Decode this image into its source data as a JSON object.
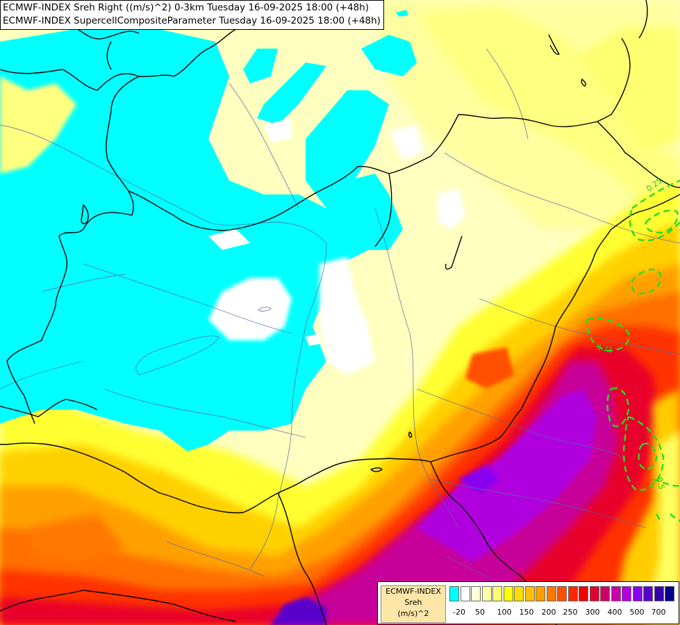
{
  "header": {
    "line1": "ECMWF-INDEX Sreh Right ((m/s)^2) 0-3km Tuesday 16-09-2025 18:00 (+48h)",
    "line2": "ECMWF-INDEX SupercellCompositeParameter Tuesday 16-09-2025 18:00 (+48h)"
  },
  "legend": {
    "model": "ECMWF-INDEX",
    "parameter": "Sreh",
    "unit": "(m/s)^2",
    "colors": [
      "#00ffff",
      "#ffffff",
      "#ffffd8",
      "#ffffa8",
      "#ffff70",
      "#ffff00",
      "#ffdd00",
      "#ffc000",
      "#ffa000",
      "#ff7800",
      "#ff5000",
      "#ff2800",
      "#f00000",
      "#dd0030",
      "#cc0066",
      "#cc00aa",
      "#b000dd",
      "#8800ee",
      "#5a00cc",
      "#3300aa",
      "#000088"
    ],
    "ticks": [
      "-20",
      "50",
      "100",
      "150",
      "200",
      "250",
      "300",
      "400",
      "500",
      "700"
    ]
  },
  "contours": {
    "color": "#22dd22",
    "labels": [
      "0.25",
      "0.25",
      "0.5"
    ]
  }
}
